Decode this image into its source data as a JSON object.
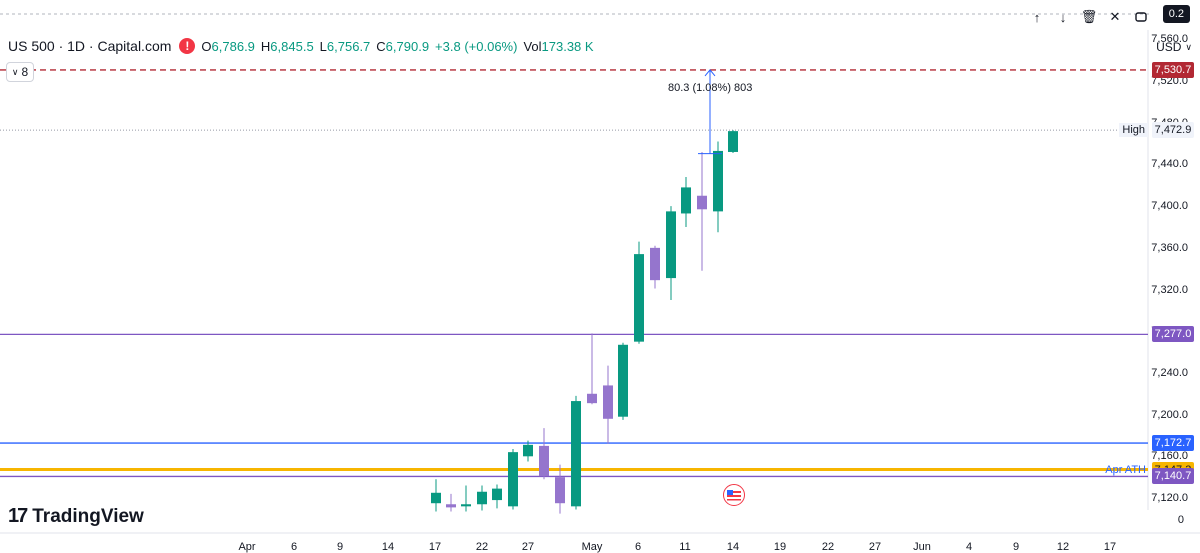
{
  "header": {
    "symbol": "US 500 · 1D · Capital.com",
    "alert_glyph": "!",
    "o_label": "O",
    "o_value": "6,786.9",
    "h_label": "H",
    "h_value": "6,845.5",
    "l_label": "L",
    "l_value": "6,756.7",
    "c_label": "C",
    "c_value": "6,790.9",
    "change": "+3.8 (+0.06%)",
    "vol_label": "Vol",
    "vol_value": "173.38 K",
    "collapse_count": "8",
    "currency": "USD"
  },
  "toolbar": {
    "up_glyph": "↑",
    "down_glyph": "↓",
    "delete_glyph": "🗑",
    "close_glyph": "✕",
    "value": "0.2"
  },
  "measure_label": "80.3 (1.08%) 803",
  "logo_text": "TradingView",
  "logo_mark": "17",
  "annotations": {
    "high_label": "High",
    "apr_ath_label": "Apr ATH"
  },
  "colors": {
    "up": "#089981",
    "down": "#9575cd",
    "red_line": "#b22833",
    "purple_line": "#7e57c2",
    "blue_line": "#2962ff",
    "yellow_line": "#f7b500",
    "measure": "#2962ff"
  },
  "chart_data": {
    "type": "candlestick",
    "y_ticks": [
      "7,560.0",
      "7,520.0",
      "7,480.0",
      "7,440.0",
      "7,400.0",
      "7,360.0",
      "7,320.0",
      "7,280.0",
      "7,240.0",
      "7,200.0",
      "7,160.0",
      "7,120.0"
    ],
    "x_ticks": [
      "Apr",
      "6",
      "9",
      "14",
      "17",
      "22",
      "27",
      "May",
      "6",
      "11",
      "14",
      "19",
      "22",
      "27",
      "Jun",
      "4",
      "9",
      "12",
      "17"
    ],
    "y_range": [
      7110,
      7580
    ],
    "price_lines": [
      {
        "name": "target",
        "price": 7530.7,
        "label": "7,530.7",
        "color": "#b22833",
        "style": "dashed"
      },
      {
        "name": "high",
        "price": 7472.9,
        "label": "7,472.9",
        "color": "#131722",
        "style": "dotted"
      },
      {
        "name": "level-7277",
        "price": 7277.0,
        "label": "7,277.0",
        "color": "#7e57c2",
        "style": "solid"
      },
      {
        "name": "level-7172",
        "price": 7172.7,
        "label": "7,172.7",
        "color": "#2962ff",
        "style": "solid"
      },
      {
        "name": "apr-ath",
        "price": 7147.3,
        "label": "7,147.3",
        "color": "#f7b500",
        "style": "solid"
      },
      {
        "name": "level-7140",
        "price": 7140.7,
        "label": "7,140.7",
        "color": "#7e57c2",
        "style": "solid"
      }
    ],
    "candles": [
      {
        "x": "Apr 17",
        "o": 7115,
        "h": 7138,
        "l": 7107,
        "c": 7125
      },
      {
        "x": "Apr 20",
        "o": 7114,
        "h": 7124,
        "l": 7107,
        "c": 7111
      },
      {
        "x": "Apr 22",
        "o": 7112,
        "h": 7132,
        "l": 7107,
        "c": 7114
      },
      {
        "x": "Apr 23",
        "o": 7114,
        "h": 7132,
        "l": 7108,
        "c": 7126
      },
      {
        "x": "Apr 24",
        "o": 7118,
        "h": 7133,
        "l": 7110,
        "c": 7129
      },
      {
        "x": "Apr 27",
        "o": 7112,
        "h": 7167,
        "l": 7109,
        "c": 7164
      },
      {
        "x": "Apr 28",
        "o": 7160,
        "h": 7175,
        "l": 7155,
        "c": 7171
      },
      {
        "x": "Apr 29",
        "o": 7170,
        "h": 7187,
        "l": 7138,
        "c": 7141
      },
      {
        "x": "Apr 30",
        "o": 7140,
        "h": 7152,
        "l": 7105,
        "c": 7115
      },
      {
        "x": "May 1",
        "o": 7112,
        "h": 7218,
        "l": 7109,
        "c": 7213
      },
      {
        "x": "May 4",
        "o": 7220,
        "h": 7278,
        "l": 7210,
        "c": 7211
      },
      {
        "x": "May 5",
        "o": 7228,
        "h": 7247,
        "l": 7172,
        "c": 7196
      },
      {
        "x": "May 6",
        "o": 7198,
        "h": 7269,
        "l": 7195,
        "c": 7267
      },
      {
        "x": "May 7",
        "o": 7270,
        "h": 7366,
        "l": 7268,
        "c": 7354
      },
      {
        "x": "May 8",
        "o": 7360,
        "h": 7362,
        "l": 7321,
        "c": 7329
      },
      {
        "x": "May 11",
        "o": 7331,
        "h": 7400,
        "l": 7310,
        "c": 7395
      },
      {
        "x": "May 12",
        "o": 7393,
        "h": 7428,
        "l": 7380,
        "c": 7418
      },
      {
        "x": "May 13",
        "o": 7410,
        "h": 7452,
        "l": 7338,
        "c": 7397
      },
      {
        "x": "May 14",
        "o": 7395,
        "h": 7462,
        "l": 7375,
        "c": 7453
      },
      {
        "x": "May 15",
        "o": 7452,
        "h": 7473,
        "l": 7451,
        "c": 7472
      }
    ],
    "measure": {
      "from": 7450.4,
      "to": 7530.7,
      "label": "80.3 (1.08%) 803"
    }
  }
}
